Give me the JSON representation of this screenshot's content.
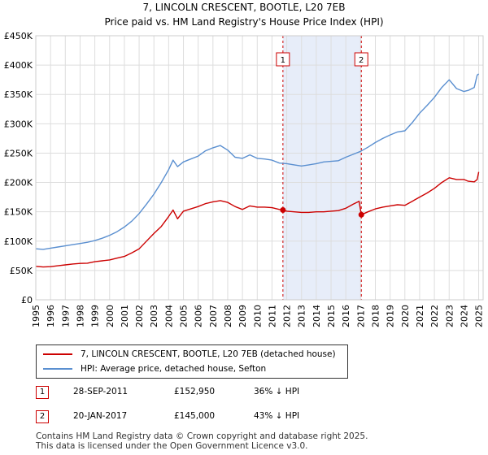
{
  "chart_data": {
    "type": "line",
    "title": "7, LINCOLN CRESCENT, BOOTLE, L20 7EB",
    "subtitle": "Price paid vs. HM Land Registry's House Price Index (HPI)",
    "xlabel": "",
    "ylabel": "",
    "xlim": [
      1995,
      2025.3
    ],
    "ylim": [
      0,
      450000
    ],
    "x_ticks": [
      "1995",
      "1996",
      "1997",
      "1998",
      "1999",
      "2000",
      "2001",
      "2002",
      "2003",
      "2004",
      "2005",
      "2006",
      "2007",
      "2008",
      "2009",
      "2010",
      "2011",
      "2012",
      "2013",
      "2014",
      "2015",
      "2016",
      "2017",
      "2018",
      "2019",
      "2020",
      "2021",
      "2022",
      "2023",
      "2024",
      "2025"
    ],
    "y_ticks": [
      {
        "value": 0,
        "label": "£0"
      },
      {
        "value": 50000,
        "label": "£50K"
      },
      {
        "value": 100000,
        "label": "£100K"
      },
      {
        "value": 150000,
        "label": "£150K"
      },
      {
        "value": 200000,
        "label": "£200K"
      },
      {
        "value": 250000,
        "label": "£250K"
      },
      {
        "value": 300000,
        "label": "£300K"
      },
      {
        "value": 350000,
        "label": "£350K"
      },
      {
        "value": 400000,
        "label": "£400K"
      },
      {
        "value": 450000,
        "label": "£450K"
      }
    ],
    "grid": true,
    "shaded_period": [
      2011.74,
      2017.05
    ],
    "series": [
      {
        "name": "7, LINCOLN CRESCENT, BOOTLE, L20 7EB (detached house)",
        "color": "#cc0000",
        "x": [
          1995.0,
          1995.5,
          1996.0,
          1996.5,
          1997.0,
          1997.5,
          1998.0,
          1998.5,
          1999.0,
          1999.5,
          2000.0,
          2000.5,
          2001.0,
          2001.5,
          2002.0,
          2002.5,
          2003.0,
          2003.5,
          2004.0,
          2004.3,
          2004.6,
          2005.0,
          2005.5,
          2006.0,
          2006.5,
          2007.0,
          2007.5,
          2008.0,
          2008.5,
          2009.0,
          2009.5,
          2010.0,
          2010.5,
          2011.0,
          2011.5,
          2011.74,
          2012.0,
          2012.5,
          2013.0,
          2013.5,
          2014.0,
          2014.5,
          2015.0,
          2015.5,
          2016.0,
          2016.5,
          2016.9,
          2017.05,
          2017.5,
          2018.0,
          2018.5,
          2019.0,
          2019.5,
          2020.0,
          2020.5,
          2021.0,
          2021.5,
          2022.0,
          2022.5,
          2023.0,
          2023.5,
          2024.0,
          2024.3,
          2024.7,
          2024.9,
          2025.0
        ],
        "y": [
          57000,
          56000,
          56500,
          58000,
          59500,
          61000,
          62000,
          62500,
          65000,
          66500,
          68000,
          71000,
          74000,
          80000,
          87000,
          100000,
          113000,
          125000,
          142000,
          153000,
          138000,
          151000,
          155000,
          159000,
          164000,
          167000,
          169000,
          166000,
          159000,
          154000,
          160000,
          158000,
          158000,
          157000,
          154000,
          152950,
          151000,
          150000,
          149000,
          149000,
          150000,
          150000,
          151000,
          152000,
          156000,
          163000,
          168000,
          145000,
          150000,
          155000,
          158000,
          160000,
          162000,
          161000,
          168000,
          175000,
          182000,
          190000,
          200000,
          208000,
          205000,
          205000,
          202000,
          201000,
          205000,
          218000
        ]
      },
      {
        "name": "HPI: Average price, detached house, Sefton",
        "color": "#5a8fd0",
        "x": [
          1995.0,
          1995.5,
          1996.0,
          1996.5,
          1997.0,
          1997.5,
          1998.0,
          1998.5,
          1999.0,
          1999.5,
          2000.0,
          2000.5,
          2001.0,
          2001.5,
          2002.0,
          2002.5,
          2003.0,
          2003.5,
          2004.0,
          2004.3,
          2004.6,
          2005.0,
          2005.5,
          2006.0,
          2006.5,
          2007.0,
          2007.5,
          2008.0,
          2008.5,
          2009.0,
          2009.5,
          2010.0,
          2010.5,
          2011.0,
          2011.5,
          2012.0,
          2012.5,
          2013.0,
          2013.5,
          2014.0,
          2014.5,
          2015.0,
          2015.5,
          2016.0,
          2016.5,
          2017.0,
          2017.5,
          2018.0,
          2018.5,
          2019.0,
          2019.5,
          2020.0,
          2020.5,
          2021.0,
          2021.5,
          2022.0,
          2022.5,
          2023.0,
          2023.5,
          2024.0,
          2024.3,
          2024.7,
          2024.9,
          2025.0
        ],
        "y": [
          87000,
          86000,
          88000,
          90000,
          92000,
          94000,
          96000,
          98000,
          101000,
          105000,
          110000,
          116000,
          124000,
          134000,
          147000,
          163000,
          180000,
          200000,
          222000,
          238000,
          227000,
          235000,
          240000,
          245000,
          254000,
          259000,
          263000,
          255000,
          243000,
          241000,
          247000,
          241000,
          240000,
          238000,
          233000,
          232000,
          230000,
          228000,
          230000,
          232000,
          235000,
          236000,
          237000,
          243000,
          248000,
          253000,
          260000,
          268000,
          275000,
          281000,
          286000,
          288000,
          302000,
          318000,
          331000,
          345000,
          362000,
          375000,
          360000,
          355000,
          357000,
          362000,
          383000,
          385000
        ]
      }
    ],
    "sales": [
      {
        "label": "1",
        "x": 2011.74,
        "y": 152950
      },
      {
        "label": "2",
        "x": 2017.05,
        "y": 145000
      }
    ]
  },
  "legend": {
    "items": [
      {
        "label": "7, LINCOLN CRESCENT, BOOTLE, L20 7EB (detached house)",
        "color": "#cc0000"
      },
      {
        "label": "HPI: Average price, detached house, Sefton",
        "color": "#5a8fd0"
      }
    ]
  },
  "transactions": [
    {
      "num": "1",
      "date": "28-SEP-2011",
      "price": "£152,950",
      "hpi": "36% ↓ HPI"
    },
    {
      "num": "2",
      "date": "20-JAN-2017",
      "price": "£145,000",
      "hpi": "43% ↓ HPI"
    }
  ],
  "footer": {
    "line1": "Contains HM Land Registry data © Crown copyright and database right 2025.",
    "line2": "This data is licensed under the Open Government Licence v3.0."
  }
}
